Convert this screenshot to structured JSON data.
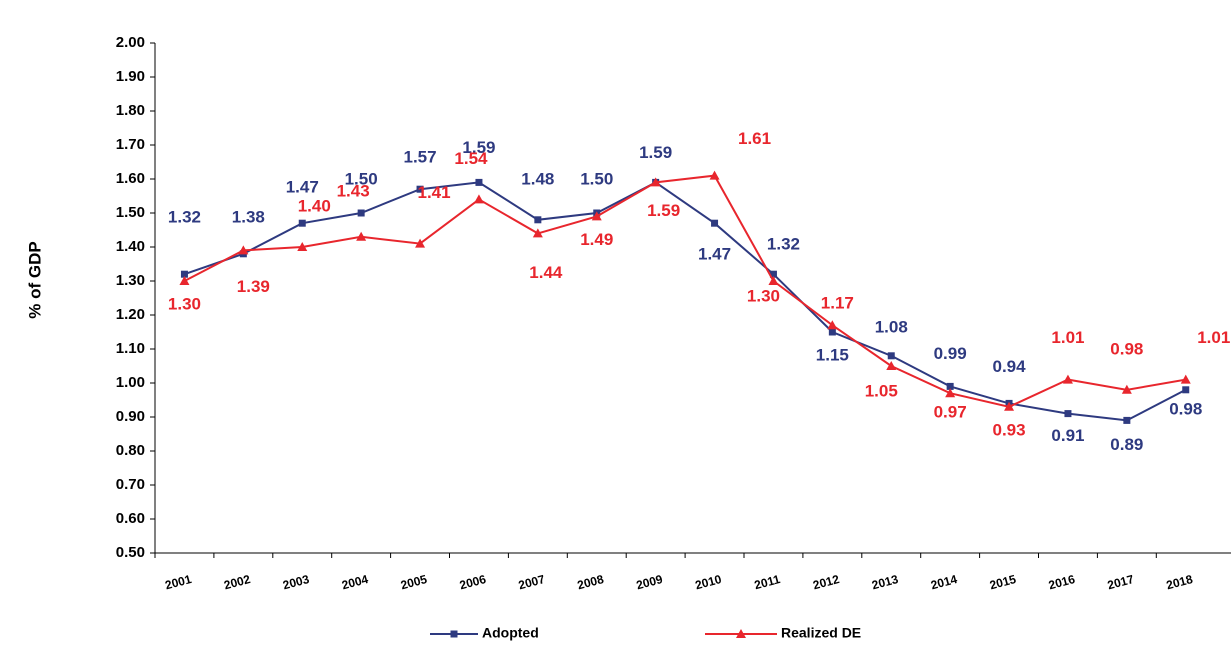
{
  "chart_data": {
    "type": "line",
    "y_axis_label": "% of GDP",
    "categories": [
      "2001",
      "2002",
      "2003",
      "2004",
      "2005",
      "2006",
      "2007",
      "2008",
      "2009",
      "2010",
      "2011",
      "2012",
      "2013",
      "2014",
      "2015",
      "2016",
      "2017",
      "2018"
    ],
    "series": [
      {
        "name": "Adopted",
        "color": "#2e3a80",
        "marker": "square",
        "values": [
          1.32,
          1.38,
          1.47,
          1.5,
          1.57,
          1.59,
          1.48,
          1.5,
          1.59,
          1.47,
          1.32,
          1.15,
          1.08,
          0.99,
          0.94,
          0.91,
          0.89,
          0.98
        ],
        "value_labels": [
          "1.32",
          "1.38",
          "1.47",
          "1.50",
          "1.57",
          "1.59",
          "1.48",
          "1.50",
          "1.59",
          "1.47",
          "1.32",
          "1.15",
          "1.08",
          "0.99",
          "0.94",
          "0.91",
          "0.89",
          "0.98"
        ]
      },
      {
        "name": "Realized DE",
        "color": "#e8262d",
        "marker": "triangle",
        "values": [
          1.3,
          1.39,
          1.4,
          1.43,
          1.41,
          1.54,
          1.44,
          1.49,
          1.59,
          1.61,
          1.3,
          1.17,
          1.05,
          0.97,
          0.93,
          1.01,
          0.98,
          1.01
        ],
        "value_labels": [
          "1.30",
          "1.39",
          "1.40",
          "1.43",
          "1.41",
          "1.54",
          "1.44",
          "1.49",
          "1.59",
          "1.61",
          "1.30",
          "1.17",
          "1.05",
          "0.97",
          "0.93",
          "1.01",
          "0.98",
          "1.01"
        ]
      }
    ],
    "ylim": [
      0.5,
      2.0
    ],
    "yticks": [
      {
        "value": 0.5,
        "label": "0.50"
      },
      {
        "value": 0.6,
        "label": "0.60"
      },
      {
        "value": 0.7,
        "label": "0.70"
      },
      {
        "value": 0.8,
        "label": "0.80"
      },
      {
        "value": 0.9,
        "label": "0.90"
      },
      {
        "value": 1.0,
        "label": "1.00"
      },
      {
        "value": 1.1,
        "label": "1.10"
      },
      {
        "value": 1.2,
        "label": "1.20"
      },
      {
        "value": 1.3,
        "label": "1.30"
      },
      {
        "value": 1.4,
        "label": "1.40"
      },
      {
        "value": 1.5,
        "label": "1.50"
      },
      {
        "value": 1.6,
        "label": "1.60"
      },
      {
        "value": 1.7,
        "label": "1.70"
      },
      {
        "value": 1.8,
        "label": "1.80"
      },
      {
        "value": 1.9,
        "label": "1.90"
      },
      {
        "value": 2.0,
        "label": "2.00"
      }
    ],
    "grid": false,
    "legend": "bottom"
  }
}
